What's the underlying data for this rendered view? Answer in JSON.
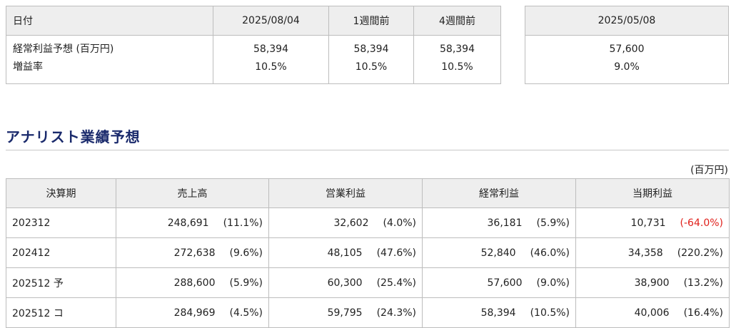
{
  "summary": {
    "header_label": "日付",
    "columns": [
      "2025/08/04",
      "1週間前",
      "4週間前"
    ],
    "row_labels": [
      "経常利益予想 (百万円)",
      "増益率"
    ],
    "profit": [
      "58,394",
      "58,394",
      "58,394"
    ],
    "growth": [
      "10.5%",
      "10.5%",
      "10.5%"
    ]
  },
  "previous": {
    "date": "2025/05/08",
    "profit": "57,600",
    "growth": "9.0%"
  },
  "analyst": {
    "title": "アナリスト業績予想",
    "unit": "(百万円)",
    "headers": [
      "決算期",
      "売上高",
      "営業利益",
      "経常利益",
      "当期利益"
    ],
    "rows": [
      {
        "period": "202312",
        "cells": [
          {
            "value": "248,691",
            "change": "(11.1%)"
          },
          {
            "value": "32,602",
            "change": "(4.0%)"
          },
          {
            "value": "36,181",
            "change": "(5.9%)"
          },
          {
            "value": "10,731",
            "change": "(-64.0%)"
          }
        ]
      },
      {
        "period": "202412",
        "cells": [
          {
            "value": "272,638",
            "change": "(9.6%)"
          },
          {
            "value": "48,105",
            "change": "(47.6%)"
          },
          {
            "value": "52,840",
            "change": "(46.0%)"
          },
          {
            "value": "34,358",
            "change": "(220.2%)"
          }
        ]
      },
      {
        "period": "202512 予",
        "cells": [
          {
            "value": "288,600",
            "change": "(5.9%)"
          },
          {
            "value": "60,300",
            "change": "(25.4%)"
          },
          {
            "value": "57,600",
            "change": "(9.0%)"
          },
          {
            "value": "38,900",
            "change": "(13.2%)"
          }
        ]
      },
      {
        "period": "202512 コ",
        "cells": [
          {
            "value": "284,969",
            "change": "(4.5%)"
          },
          {
            "value": "59,795",
            "change": "(24.3%)"
          },
          {
            "value": "58,394",
            "change": "(10.5%)"
          },
          {
            "value": "40,006",
            "change": "(16.4%)"
          }
        ]
      }
    ]
  },
  "colors": {
    "negative": "#e0201b",
    "title": "#1a2a6c",
    "header_bg": "#eeeeee"
  }
}
